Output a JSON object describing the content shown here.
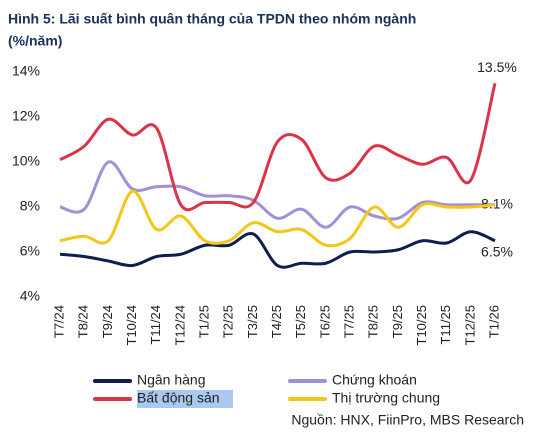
{
  "chart_data": {
    "type": "line",
    "title": "Hình 5: Lãi suất bình quân tháng của TPDN theo nhóm ngành",
    "subtitle": "(%/năm)",
    "categories": [
      "T7/24",
      "T8/24",
      "T9/24",
      "T10/24",
      "T11/24",
      "T12/24",
      "T1/25",
      "T2/25",
      "T3/25",
      "T4/25",
      "T5/25",
      "T6/25",
      "T7/25",
      "T8/25",
      "T9/25",
      "T10/25",
      "T11/25",
      "T12/25",
      "T1/26"
    ],
    "series": [
      {
        "name": "Ngân hàng",
        "color": "#0d1f4f",
        "values": [
          5.9,
          5.8,
          5.6,
          5.4,
          5.8,
          5.9,
          6.3,
          6.3,
          6.8,
          5.4,
          5.5,
          5.5,
          6.0,
          6.0,
          6.1,
          6.5,
          6.4,
          6.9,
          6.5
        ],
        "value_labels": [
          null,
          null,
          null,
          null,
          null,
          null,
          null,
          null,
          null,
          null,
          null,
          null,
          null,
          null,
          null,
          null,
          null,
          null,
          "6.5%"
        ]
      },
      {
        "name": "Chứng khoán",
        "color": "#a38fd6",
        "values": [
          8.0,
          7.9,
          10.0,
          8.8,
          8.9,
          8.9,
          8.5,
          8.5,
          8.3,
          7.5,
          7.9,
          7.1,
          8.0,
          7.6,
          7.5,
          8.2,
          8.1,
          8.1,
          8.1
        ],
        "value_labels": [
          null,
          null,
          null,
          null,
          null,
          null,
          null,
          null,
          null,
          null,
          null,
          null,
          null,
          null,
          null,
          null,
          null,
          null,
          "8.1%"
        ]
      },
      {
        "name": "Bất động sản",
        "color": "#d9344a",
        "values": [
          10.1,
          10.7,
          11.9,
          11.2,
          11.5,
          8.1,
          8.2,
          8.2,
          8.2,
          10.9,
          11.0,
          9.3,
          9.5,
          10.7,
          10.3,
          9.9,
          10.2,
          9.2,
          13.5
        ],
        "value_labels": [
          null,
          null,
          null,
          null,
          null,
          null,
          null,
          null,
          null,
          null,
          null,
          null,
          null,
          null,
          null,
          null,
          null,
          null,
          "13.5%"
        ]
      },
      {
        "name": "Thị trường chung",
        "color": "#f5c518",
        "values": [
          6.5,
          6.7,
          6.5,
          8.7,
          7.0,
          7.6,
          6.5,
          6.5,
          7.3,
          6.9,
          7.0,
          6.3,
          6.6,
          8.0,
          7.1,
          8.1,
          8.0,
          8.0,
          8.1
        ]
      }
    ],
    "ylim": [
      4,
      14
    ],
    "yticks": [
      {
        "value": 4,
        "label": "4%"
      },
      {
        "value": 6,
        "label": "6%"
      },
      {
        "value": 8,
        "label": "8%"
      },
      {
        "value": 10,
        "label": "10%"
      },
      {
        "value": 12,
        "label": "12%"
      },
      {
        "value": 14,
        "label": "14%"
      }
    ],
    "source": "Nguồn: HNX, FiinPro, MBS Research"
  }
}
